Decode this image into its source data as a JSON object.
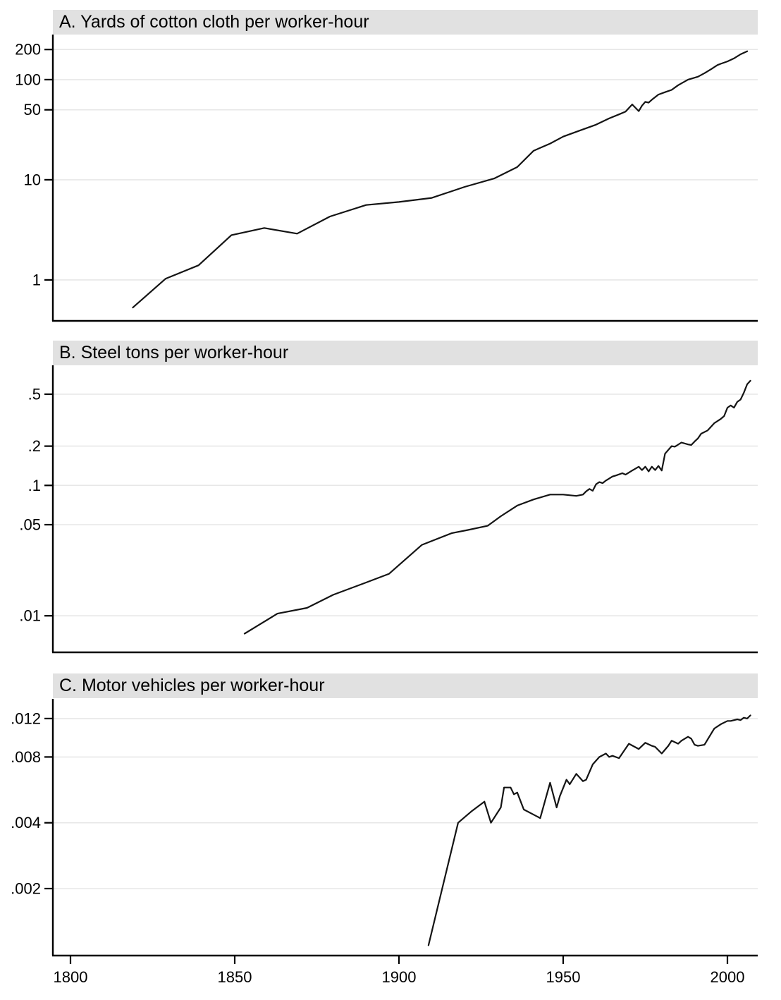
{
  "figure": {
    "background": "#ffffff",
    "banner_color": "#e1e1e1",
    "line_color": "#141414",
    "grid_color": "#e7e7e7",
    "axis_color": "#000000"
  },
  "chart_data": [
    {
      "type": "line",
      "panel": "A",
      "title": "A. Yards of cotton cloth per worker-hour",
      "yscale": "log",
      "grid": "horizontal",
      "legend": "none",
      "xlim": [
        1794,
        2009
      ],
      "ylim": [
        0.39,
        282
      ],
      "x_ticks": [
        1800,
        1850,
        1900,
        1950,
        2000
      ],
      "x_tick_labels": [
        "1800",
        "1850",
        "1900",
        "1950",
        "2000"
      ],
      "y_ticks": [
        200,
        100,
        50,
        10,
        1
      ],
      "y_tick_labels": [
        "200",
        "100",
        "50",
        "10",
        "1"
      ],
      "x": [
        1819,
        1829,
        1839,
        1849,
        1859,
        1869,
        1879,
        1890,
        1900,
        1910,
        1920,
        1929,
        1936,
        1941,
        1946,
        1950,
        1955,
        1960,
        1964,
        1967,
        1969,
        1971,
        1973,
        1974,
        1975,
        1976,
        1977,
        1979,
        1981,
        1983,
        1985,
        1988,
        1991,
        1993,
        1995,
        1997,
        1998,
        2000,
        2002,
        2004,
        2006
      ],
      "y": [
        0.53,
        1.03,
        1.4,
        2.8,
        3.3,
        2.9,
        4.3,
        5.6,
        6.0,
        6.6,
        8.5,
        10.3,
        13.4,
        19.5,
        23,
        27,
        31,
        35.5,
        41,
        45,
        48,
        56.5,
        48.5,
        55,
        60,
        59,
        63,
        71,
        75,
        79,
        88,
        100,
        107,
        116,
        127,
        140,
        144,
        152,
        163,
        179,
        192
      ]
    },
    {
      "type": "line",
      "panel": "B",
      "title": "B. Steel tons per worker-hour",
      "yscale": "log",
      "grid": "horizontal",
      "legend": "none",
      "xlim": [
        1794,
        2009
      ],
      "ylim": [
        0.00525,
        0.833
      ],
      "x_ticks": [
        1800,
        1850,
        1900,
        1950,
        2000
      ],
      "x_tick_labels": [
        "1800",
        "1850",
        "1900",
        "1950",
        "2000"
      ],
      "y_ticks": [
        0.5,
        0.2,
        0.1,
        0.05,
        0.01
      ],
      "y_tick_labels": [
        ".5",
        ".2",
        ".1",
        ".05",
        ".01"
      ],
      "x": [
        1853,
        1863,
        1872,
        1880,
        1890,
        1897,
        1907,
        1916,
        1921,
        1927,
        1931,
        1936,
        1941,
        1946,
        1950,
        1954,
        1956,
        1957,
        1958,
        1959,
        1960,
        1961,
        1962,
        1963,
        1965,
        1966,
        1968,
        1969,
        1971,
        1973,
        1974,
        1975,
        1976,
        1977,
        1978,
        1979,
        1980,
        1981,
        1983,
        1984,
        1986,
        1988,
        1989,
        1990,
        1991,
        1992,
        1994,
        1996,
        1998,
        1999,
        2000,
        2001,
        2002,
        2003,
        2004,
        2005,
        2006,
        2007
      ],
      "y": [
        0.0073,
        0.0104,
        0.0115,
        0.0145,
        0.018,
        0.021,
        0.035,
        0.043,
        0.0455,
        0.049,
        0.058,
        0.07,
        0.078,
        0.085,
        0.085,
        0.083,
        0.085,
        0.09,
        0.094,
        0.091,
        0.102,
        0.106,
        0.104,
        0.109,
        0.117,
        0.119,
        0.124,
        0.121,
        0.13,
        0.139,
        0.131,
        0.139,
        0.128,
        0.139,
        0.131,
        0.141,
        0.13,
        0.175,
        0.2,
        0.198,
        0.213,
        0.206,
        0.204,
        0.217,
        0.229,
        0.249,
        0.264,
        0.3,
        0.324,
        0.34,
        0.394,
        0.41,
        0.394,
        0.437,
        0.455,
        0.514,
        0.596,
        0.634
      ]
    },
    {
      "type": "line",
      "panel": "C",
      "title": "C. Motor vehicles per worker-hour",
      "yscale": "log",
      "grid": "horizontal",
      "legend": "none",
      "xlim": [
        1794,
        2009
      ],
      "ylim": [
        0.000987,
        0.01476
      ],
      "x_ticks": [
        1800,
        1850,
        1900,
        1950,
        2000
      ],
      "x_tick_labels": [
        "1800",
        "1850",
        "1900",
        "1950",
        "2000"
      ],
      "y_ticks": [
        0.012,
        0.008,
        0.004,
        0.002
      ],
      "y_tick_labels": [
        ".012",
        ".008",
        ".004",
        ".002"
      ],
      "x": [
        1909,
        1918,
        1922,
        1926,
        1928,
        1931,
        1932,
        1934,
        1935,
        1936,
        1938,
        1943,
        1946,
        1948,
        1949,
        1951,
        1952,
        1954,
        1956,
        1957,
        1959,
        1961,
        1963,
        1964,
        1965,
        1967,
        1970,
        1973,
        1975,
        1977,
        1978,
        1980,
        1982,
        1983,
        1985,
        1986,
        1988,
        1989,
        1990,
        1991,
        1993,
        1995,
        1996,
        1998,
        2000,
        2001,
        2003,
        2004,
        2005,
        2006,
        2007
      ],
      "y": [
        0.0011,
        0.004,
        0.0045,
        0.005,
        0.004,
        0.0047,
        0.0058,
        0.0058,
        0.0054,
        0.0055,
        0.0046,
        0.0042,
        0.0061,
        0.0047,
        0.0053,
        0.0063,
        0.006,
        0.0067,
        0.0062,
        0.0063,
        0.0074,
        0.008,
        0.0083,
        0.008,
        0.0081,
        0.0079,
        0.0092,
        0.0087,
        0.0093,
        0.009,
        0.0089,
        0.0083,
        0.009,
        0.0095,
        0.0092,
        0.0095,
        0.0099,
        0.0097,
        0.0091,
        0.009,
        0.0091,
        0.0102,
        0.0108,
        0.0113,
        0.0117,
        0.0117,
        0.0119,
        0.0118,
        0.0121,
        0.012,
        0.0124
      ]
    }
  ]
}
